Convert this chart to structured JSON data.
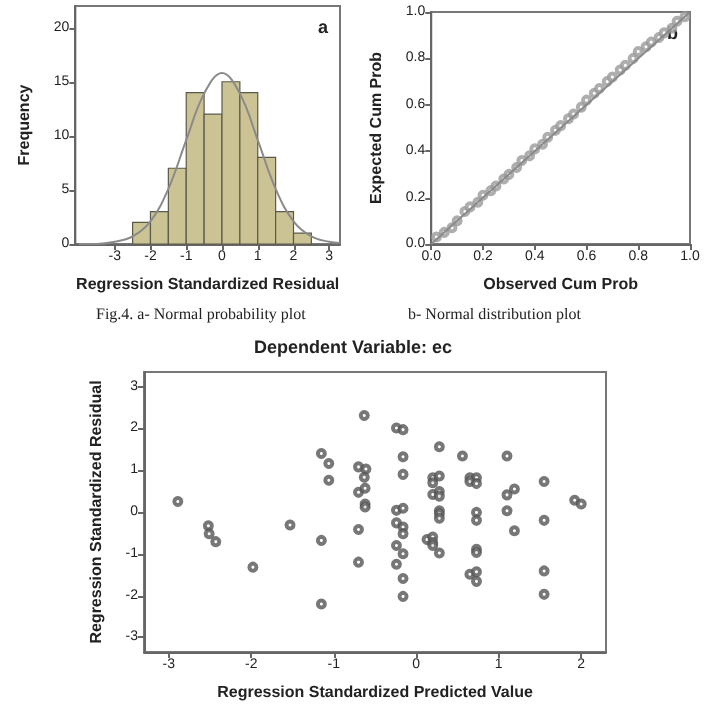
{
  "chart_data": [
    {
      "type": "histogram",
      "xlabel": "Regression Standardized Residual",
      "ylabel": "Frequency",
      "annotations": [
        "a",
        "Fig.4. a- Normal probability plot"
      ],
      "bins": [
        -2.5,
        -2,
        -1.5,
        -1,
        -0.5,
        0,
        0.5,
        1,
        1.5,
        2,
        2.5
      ],
      "xlim": [
        -4.1,
        3.3
      ],
      "xticks": [
        -3,
        -2,
        -1,
        0,
        1,
        2,
        3
      ],
      "ylim": [
        0,
        22
      ],
      "yticks": [
        0,
        5,
        10,
        15,
        20
      ],
      "series": [
        {
          "color": "#cbc394",
          "values": [
            2,
            3,
            7,
            14,
            12,
            15,
            14,
            8,
            3,
            1
          ]
        },
        {
          "type": "line",
          "color": "#8a8a8a",
          "x": [
            -4,
            -3.5,
            -3,
            -2.5,
            -2,
            -1.5,
            -1,
            -0.5,
            0,
            0.5,
            1,
            1.5,
            2,
            2.5,
            3,
            3.3
          ],
          "values": [
            0,
            0,
            0.2,
            0.7,
            2.1,
            5.1,
            9.6,
            13.9,
            15.8,
            13.9,
            9.6,
            5.1,
            2.1,
            0.7,
            0.2,
            0.1
          ]
        }
      ]
    },
    {
      "type": "scatter",
      "xlabel": "Observed Cum Prob",
      "ylabel": "Expected Cum Prob",
      "annotations": [
        "b",
        "b- Normal distribution plot"
      ],
      "xlim": [
        0,
        1
      ],
      "ylim": [
        0,
        1
      ],
      "xticks": [
        {
          "value": 0,
          "label": "0.0"
        },
        {
          "value": 0.2,
          "label": "0.2"
        },
        {
          "value": 0.4,
          "label": "0.4"
        },
        {
          "value": 0.6,
          "label": "0.6"
        },
        {
          "value": 0.8,
          "label": "0.8"
        },
        {
          "value": 1,
          "label": "1.0"
        }
      ],
      "yticks": [
        {
          "value": 0,
          "label": "0.0"
        },
        {
          "value": 0.2,
          "label": "0.2"
        },
        {
          "value": 0.4,
          "label": "0.4"
        },
        {
          "value": 0.6,
          "label": "0.6"
        },
        {
          "value": 0.8,
          "label": "0.8"
        },
        {
          "value": 1,
          "label": "1.0"
        }
      ],
      "series": [
        {
          "type": "line",
          "color": "#8a8a8a",
          "x": [
            0,
            1
          ],
          "values": [
            0,
            1
          ]
        },
        {
          "color": "#9a9a9a",
          "marker": "circle",
          "x": [
            0.02,
            0.05,
            0.08,
            0.1,
            0.13,
            0.15,
            0.18,
            0.2,
            0.23,
            0.25,
            0.28,
            0.3,
            0.33,
            0.35,
            0.38,
            0.4,
            0.43,
            0.45,
            0.48,
            0.5,
            0.53,
            0.55,
            0.58,
            0.6,
            0.63,
            0.65,
            0.68,
            0.7,
            0.73,
            0.75,
            0.78,
            0.8,
            0.83,
            0.85,
            0.88,
            0.9,
            0.93,
            0.95,
            0.98
          ],
          "values": [
            0.03,
            0.05,
            0.07,
            0.1,
            0.14,
            0.16,
            0.18,
            0.21,
            0.23,
            0.25,
            0.28,
            0.3,
            0.33,
            0.36,
            0.38,
            0.41,
            0.43,
            0.46,
            0.49,
            0.51,
            0.54,
            0.56,
            0.59,
            0.62,
            0.65,
            0.67,
            0.7,
            0.72,
            0.75,
            0.77,
            0.8,
            0.83,
            0.85,
            0.87,
            0.89,
            0.91,
            0.93,
            0.96,
            0.98
          ]
        }
      ]
    },
    {
      "type": "scatter",
      "title": "Dependent Variable: ec",
      "xlabel": "Regression Standardized Predicted Value",
      "ylabel": "Regression Standardized Residual",
      "marker": "circle",
      "xlim": [
        -3.3,
        2.3
      ],
      "xticks": [
        -3,
        -2,
        -1,
        0,
        1,
        2
      ],
      "ylim": [
        -3.35,
        3.35
      ],
      "yticks": [
        -3,
        -2,
        -1,
        0,
        1,
        2,
        3
      ],
      "series": [
        {
          "color": "#555555",
          "x": [
            -2.89,
            -2.52,
            -2.51,
            -2.43,
            -1.98,
            -1.53,
            -1.15,
            -1.06,
            -1.06,
            -1.15,
            -1.15,
            -0.63,
            -0.7,
            -0.61,
            -0.63,
            -0.7,
            -0.62,
            -0.62,
            -0.62,
            -0.7,
            -0.7,
            -0.24,
            -0.16,
            -0.16,
            -0.16,
            -0.24,
            -0.16,
            -0.24,
            -0.16,
            -0.16,
            -0.24,
            -0.16,
            -0.24,
            -0.16,
            -0.16,
            0.13,
            0.2,
            0.2,
            0.2,
            0.2,
            0.2,
            0.2,
            0.28,
            0.28,
            0.28,
            0.28,
            0.28,
            0.28,
            0.28,
            0.28,
            0.56,
            0.65,
            0.73,
            0.65,
            0.73,
            0.73,
            0.73,
            0.73,
            0.73,
            0.65,
            0.73,
            0.73,
            1.1,
            1.1,
            1.19,
            1.1,
            1.19,
            1.55,
            1.55,
            1.55,
            1.55,
            1.92,
            2.0
          ],
          "values": [
            0.25,
            -0.33,
            -0.52,
            -0.71,
            -1.32,
            -0.31,
            1.4,
            1.16,
            0.76,
            -0.68,
            -2.2,
            2.31,
            1.08,
            1.03,
            0.83,
            0.47,
            0.57,
            0.19,
            0.12,
            -0.42,
            -1.2,
            2.01,
            1.97,
            1.32,
            0.9,
            0.04,
            0.09,
            -0.26,
            -0.36,
            -0.52,
            -0.8,
            -1.0,
            -1.25,
            -1.59,
            -2.02,
            -0.66,
            -0.6,
            -0.73,
            -0.8,
            0.82,
            0.7,
            0.42,
            1.56,
            0.86,
            0.49,
            0.38,
            0.03,
            -0.04,
            -0.15,
            -0.98,
            1.34,
            0.82,
            0.82,
            0.73,
            0.68,
            -0.01,
            -0.2,
            -0.89,
            -0.97,
            -1.49,
            -1.43,
            -1.66,
            1.34,
            0.41,
            0.55,
            0.03,
            -0.45,
            0.73,
            -0.2,
            -1.41,
            -1.97,
            0.28,
            0.19
          ]
        }
      ]
    }
  ]
}
